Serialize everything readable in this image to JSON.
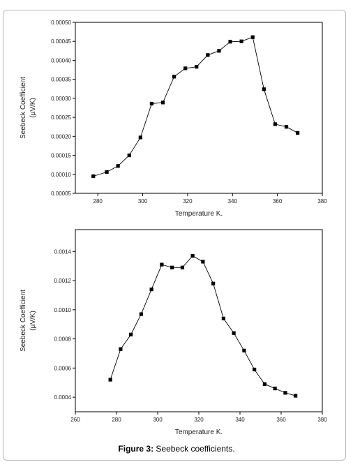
{
  "caption": {
    "label": "Figure 3:",
    "text": " Seebeck coefficients."
  },
  "colors": {
    "line": "#000000",
    "marker": "#000000",
    "frame": "#b9b9b9"
  },
  "chart_data": [
    {
      "type": "line",
      "xlabel": "Temperature K.",
      "ylabel_line1": "Seebeck Coefficient",
      "ylabel_line2": "(µV/K)",
      "xlim": [
        270,
        380
      ],
      "ylim": [
        5e-05,
        0.0005
      ],
      "xticks": [
        280,
        300,
        320,
        340,
        360,
        380
      ],
      "yticks": [
        5e-05,
        0.0001,
        0.00015,
        0.0002,
        0.00025,
        0.0003,
        0.00035,
        0.0004,
        0.00045,
        0.0005
      ],
      "ytick_labels": [
        "0.00005",
        "0.00010",
        "0.00015",
        "0.00020",
        "0.00025",
        "0.00030",
        "0.00035",
        "0.00040",
        "0.00045",
        "0.00050"
      ],
      "grid": false,
      "x": [
        278,
        284,
        289,
        294,
        299,
        304,
        309,
        314,
        319,
        324,
        329,
        334,
        339,
        344,
        349,
        354,
        359,
        364,
        369
      ],
      "y": [
        9.5e-05,
        0.000106,
        0.000122,
        0.00015,
        0.000197,
        0.000286,
        0.000289,
        0.000357,
        0.000379,
        0.000383,
        0.000414,
        0.000425,
        0.000449,
        0.00045,
        0.000461,
        0.000324,
        0.000232,
        0.000225,
        0.000209
      ]
    },
    {
      "type": "line",
      "xlabel": "Temperature K.",
      "ylabel_line1": "Seebeck Coefficient",
      "ylabel_line2": "(µV/K)",
      "xlim": [
        260,
        380
      ],
      "ylim": [
        0.0003,
        0.00155
      ],
      "xticks": [
        260,
        280,
        300,
        320,
        340,
        360,
        380
      ],
      "yticks": [
        0.0004,
        0.0006,
        0.0008,
        0.001,
        0.0012,
        0.0014
      ],
      "ytick_labels": [
        "0.0004",
        "0.0006",
        "0.0008",
        "0.0010",
        "0.0012",
        "0.0014"
      ],
      "grid": false,
      "x": [
        277,
        282,
        287,
        292,
        297,
        302,
        307,
        312,
        317,
        322,
        327,
        332,
        337,
        342,
        347,
        352,
        357,
        362,
        367
      ],
      "y": [
        0.00052,
        0.00073,
        0.00083,
        0.00097,
        0.00114,
        0.00131,
        0.00129,
        0.00129,
        0.00137,
        0.00133,
        0.00118,
        0.00094,
        0.00084,
        0.00072,
        0.00059,
        0.00049,
        0.00046,
        0.00043,
        0.00041
      ]
    }
  ]
}
